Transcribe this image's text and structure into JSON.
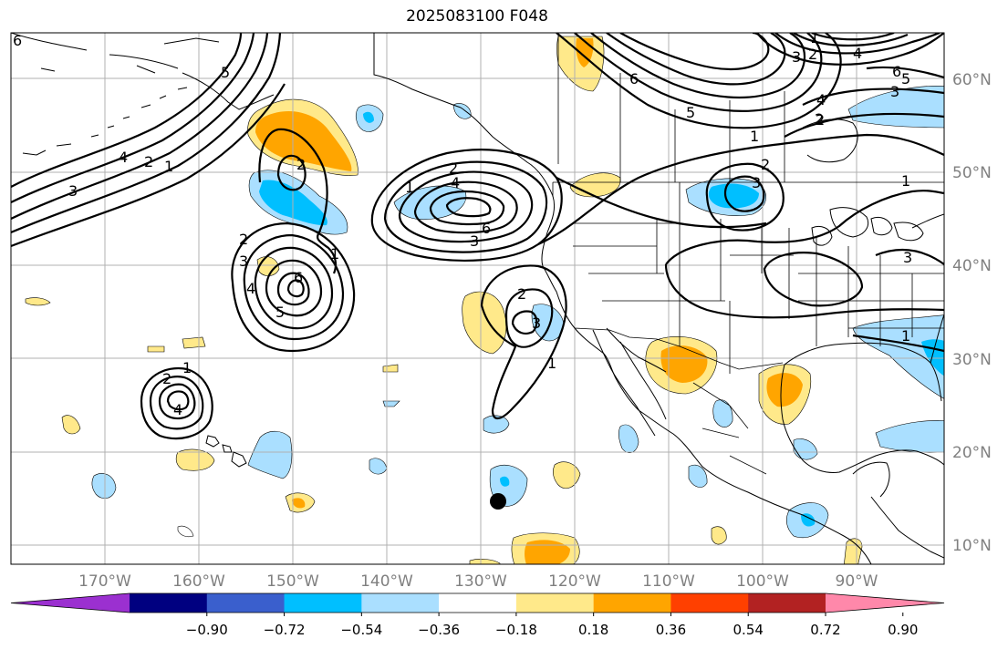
{
  "title": "2025083100 F048",
  "lat_labels": [
    "60°N",
    "50°N",
    "40°N",
    "30°N",
    "20°N",
    "10°N"
  ],
  "lon_labels": [
    "170°W",
    "160°W",
    "150°W",
    "140°W",
    "130°W",
    "120°W",
    "110°W",
    "100°W",
    "90°W"
  ],
  "colorbar": {
    "colors": [
      "#9b30d0",
      "#000080",
      "#3a5fcd",
      "#00bfff",
      "#aadfff",
      "#ffffff",
      "#ffe98a",
      "#ffa500",
      "#ff4000",
      "#b22222",
      "#ff88aa"
    ],
    "tick_labels": [
      "−0.90",
      "−0.72",
      "−0.54",
      "−0.36",
      "−0.18",
      "0.18",
      "0.36",
      "0.54",
      "0.72",
      "0.90"
    ]
  },
  "contour_labels": [
    "6",
    "4",
    "2",
    "1",
    "3",
    "5",
    "2",
    "3",
    "4",
    "2",
    "1",
    "6",
    "5",
    "3",
    "2",
    "4",
    "5",
    "1",
    "2",
    "3",
    "6",
    "1",
    "2",
    "1",
    "4",
    "2",
    "3",
    "2",
    "3",
    "1",
    "1",
    "3",
    "1",
    "2",
    "3",
    "4",
    "5",
    "6",
    "1",
    "2",
    "4",
    "6"
  ],
  "marker": "storm-center-dot"
}
